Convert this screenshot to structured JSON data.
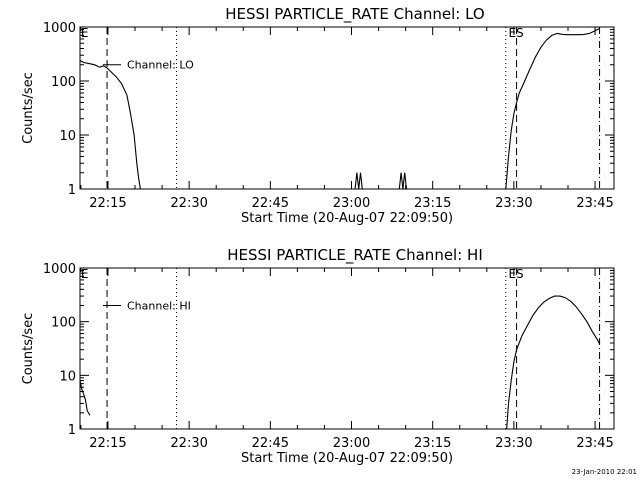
{
  "footer": {
    "timestamp": "23-Jan-2010 22:01"
  },
  "chart_data": [
    {
      "type": "line",
      "title": "HESSI PARTICLE_RATE Channel: LO",
      "xlabel": "Start Time (20-Aug-07 22:09:50)",
      "ylabel": "Counts/sec",
      "yscale": "log",
      "ylim": [
        1,
        1000
      ],
      "xlim": [
        "22:09:50",
        "23:48:30"
      ],
      "xticks": [
        "22:15",
        "22:30",
        "22:45",
        "23:00",
        "23:15",
        "23:30",
        "23:45"
      ],
      "yticks": [
        "1",
        "10",
        "100",
        "1000"
      ],
      "legend": "Channel: LO",
      "legend_position": "top-left",
      "event_labels": [
        {
          "label": "E",
          "time": "22:10:00"
        },
        {
          "label": "ES",
          "time": "23:29:00"
        }
      ],
      "markers": [
        {
          "time": "22:14:50",
          "style": "dashed"
        },
        {
          "time": "22:27:40",
          "style": "dotted"
        },
        {
          "time": "23:28:30",
          "style": "dotted"
        },
        {
          "time": "23:30:30",
          "style": "dashed"
        },
        {
          "time": "23:45:50",
          "style": "dashdot"
        }
      ],
      "series": [
        {
          "segments": [
            {
              "x": [
                "22:09:50",
                "22:10:30",
                "22:11:30",
                "22:12:30",
                "22:13:30",
                "22:14:10",
                "22:14:50",
                "22:15:30",
                "22:16:30",
                "22:17:30",
                "22:18:30",
                "22:19:10",
                "22:19:50",
                "22:20:20",
                "22:20:40",
                "22:21:00"
              ],
              "y": [
                240,
                220,
                210,
                200,
                180,
                190,
                175,
                150,
                120,
                90,
                55,
                25,
                10,
                3,
                1.6,
                1
              ]
            },
            {
              "x": [
                "23:00:40",
                "23:01:00",
                "23:01:20",
                "23:01:40",
                "23:02:00"
              ],
              "y": [
                1,
                2,
                1,
                2,
                1
              ]
            },
            {
              "x": [
                "23:08:50",
                "23:09:10",
                "23:09:30",
                "23:09:50",
                "23:10:10"
              ],
              "y": [
                1,
                2,
                1,
                2,
                1
              ]
            },
            {
              "x": [
                "23:28:30",
                "23:29:00",
                "23:29:30",
                "23:30:00",
                "23:30:30",
                "23:31:00",
                "23:32:00",
                "23:33:00",
                "23:34:00",
                "23:35:00",
                "23:36:00",
                "23:37:00",
                "23:38:00",
                "23:39:00",
                "23:40:00",
                "23:41:00",
                "23:42:00",
                "23:43:00",
                "23:44:00",
                "23:45:00",
                "23:45:50"
              ],
              "y": [
                1,
                4,
                12,
                25,
                40,
                60,
                100,
                170,
                280,
                420,
                570,
                700,
                760,
                730,
                720,
                720,
                720,
                730,
                760,
                850,
                940
              ]
            }
          ]
        }
      ]
    },
    {
      "type": "line",
      "title": "HESSI PARTICLE_RATE Channel: HI",
      "xlabel": "Start Time (20-Aug-07 22:09:50)",
      "ylabel": "Counts/sec",
      "yscale": "log",
      "ylim": [
        1,
        1000
      ],
      "xlim": [
        "22:09:50",
        "23:48:30"
      ],
      "xticks": [
        "22:15",
        "22:30",
        "22:45",
        "23:00",
        "23:15",
        "23:30",
        "23:45"
      ],
      "yticks": [
        "1",
        "10",
        "100",
        "1000"
      ],
      "legend": "Channel: HI",
      "legend_position": "top-left",
      "event_labels": [
        {
          "label": "E",
          "time": "22:10:00"
        },
        {
          "label": "ES",
          "time": "23:29:00"
        }
      ],
      "markers": [
        {
          "time": "22:14:50",
          "style": "dashed"
        },
        {
          "time": "22:27:40",
          "style": "dotted"
        },
        {
          "time": "23:28:30",
          "style": "dotted"
        },
        {
          "time": "23:30:30",
          "style": "dashed"
        },
        {
          "time": "23:45:50",
          "style": "dashdot"
        }
      ],
      "series": [
        {
          "segments": [
            {
              "x": [
                "22:09:50",
                "22:10:10",
                "22:10:30",
                "22:10:50",
                "22:11:10",
                "22:11:40"
              ],
              "y": [
                8,
                5.5,
                4.5,
                3.5,
                2.2,
                1.8
              ]
            },
            {
              "x": [
                "23:28:40",
                "23:29:00",
                "23:29:30",
                "23:30:00",
                "23:30:30",
                "23:31:30",
                "23:32:30",
                "23:33:30",
                "23:34:30",
                "23:35:30",
                "23:36:30",
                "23:37:30",
                "23:38:30",
                "23:39:30",
                "23:40:30",
                "23:41:30",
                "23:42:30",
                "23:43:30",
                "23:44:30",
                "23:45:30",
                "23:45:50"
              ],
              "y": [
                1,
                3,
                8,
                18,
                30,
                55,
                85,
                130,
                180,
                230,
                270,
                300,
                300,
                280,
                240,
                190,
                140,
                100,
                65,
                45,
                38
              ]
            }
          ]
        }
      ]
    }
  ]
}
